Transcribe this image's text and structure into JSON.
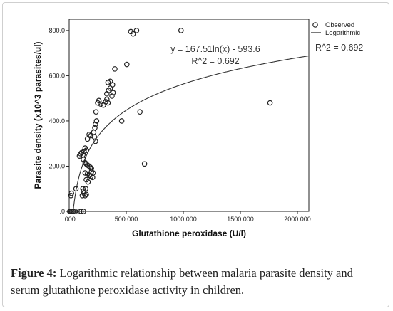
{
  "caption": {
    "label": "Figure 4:",
    "text": " Logarithmic relationship between malaria parasite density and serum glutathione peroxidase activity in children."
  },
  "chart_data": {
    "type": "scatter",
    "xlabel": "Glutathione peroxidase (U/l)",
    "ylabel": "Parasite density (x10^3 parasites/ul)",
    "xlim": [
      0,
      2100
    ],
    "ylim": [
      0,
      850
    ],
    "x_ticks": [
      0,
      500,
      1000,
      1500,
      2000
    ],
    "x_tick_labels": [
      ".000",
      "500.000",
      "1000.000",
      "1500.000",
      "2000.000"
    ],
    "y_ticks": [
      0,
      200,
      400,
      600,
      800
    ],
    "y_tick_labels": [
      ".0",
      "200.0",
      "400.0",
      "600.0",
      "800.0"
    ],
    "grid": false,
    "legend": {
      "placement": "top-right",
      "entries": [
        {
          "label": "Observed",
          "marker": "circle"
        },
        {
          "label": "Logarithmic",
          "marker": "line"
        }
      ]
    },
    "fit": {
      "model": "logarithmic",
      "a": 167.51,
      "b": -593.6,
      "equation_label": "y = 167.51ln(x) - 593.6",
      "r2_label": "R^2 = 0.692",
      "side_r2_label": "R^2 = 0.692"
    },
    "series": [
      {
        "name": "Observed",
        "points": [
          [
            5,
            0
          ],
          [
            15,
            0
          ],
          [
            25,
            0
          ],
          [
            35,
            0
          ],
          [
            50,
            0
          ],
          [
            90,
            0
          ],
          [
            105,
            0
          ],
          [
            125,
            0
          ],
          [
            15,
            70
          ],
          [
            20,
            80
          ],
          [
            60,
            100
          ],
          [
            90,
            245
          ],
          [
            100,
            255
          ],
          [
            110,
            260
          ],
          [
            120,
            250
          ],
          [
            130,
            265
          ],
          [
            140,
            280
          ],
          [
            150,
            270
          ],
          [
            125,
            230
          ],
          [
            140,
            215
          ],
          [
            150,
            210
          ],
          [
            160,
            205
          ],
          [
            175,
            200
          ],
          [
            185,
            195
          ],
          [
            195,
            190
          ],
          [
            140,
            170
          ],
          [
            160,
            165
          ],
          [
            175,
            160
          ],
          [
            190,
            155
          ],
          [
            205,
            150
          ],
          [
            150,
            140
          ],
          [
            165,
            130
          ],
          [
            180,
            160
          ],
          [
            195,
            175
          ],
          [
            210,
            170
          ],
          [
            120,
            100
          ],
          [
            130,
            80
          ],
          [
            140,
            70
          ],
          [
            150,
            75
          ],
          [
            125,
            90
          ],
          [
            145,
            100
          ],
          [
            115,
            70
          ],
          [
            160,
            320
          ],
          [
            175,
            340
          ],
          [
            190,
            335
          ],
          [
            220,
            330
          ],
          [
            230,
            310
          ],
          [
            215,
            350
          ],
          [
            225,
            370
          ],
          [
            230,
            385
          ],
          [
            240,
            400
          ],
          [
            235,
            440
          ],
          [
            250,
            480
          ],
          [
            260,
            490
          ],
          [
            275,
            475
          ],
          [
            300,
            470
          ],
          [
            320,
            485
          ],
          [
            340,
            480
          ],
          [
            330,
            495
          ],
          [
            330,
            520
          ],
          [
            345,
            535
          ],
          [
            360,
            545
          ],
          [
            375,
            510
          ],
          [
            385,
            525
          ],
          [
            340,
            570
          ],
          [
            360,
            575
          ],
          [
            380,
            560
          ],
          [
            400,
            630
          ],
          [
            460,
            400
          ],
          [
            505,
            650
          ],
          [
            540,
            795
          ],
          [
            560,
            785
          ],
          [
            590,
            800
          ],
          [
            620,
            440
          ],
          [
            660,
            210
          ],
          [
            980,
            800
          ],
          [
            1760,
            480
          ]
        ]
      }
    ]
  }
}
